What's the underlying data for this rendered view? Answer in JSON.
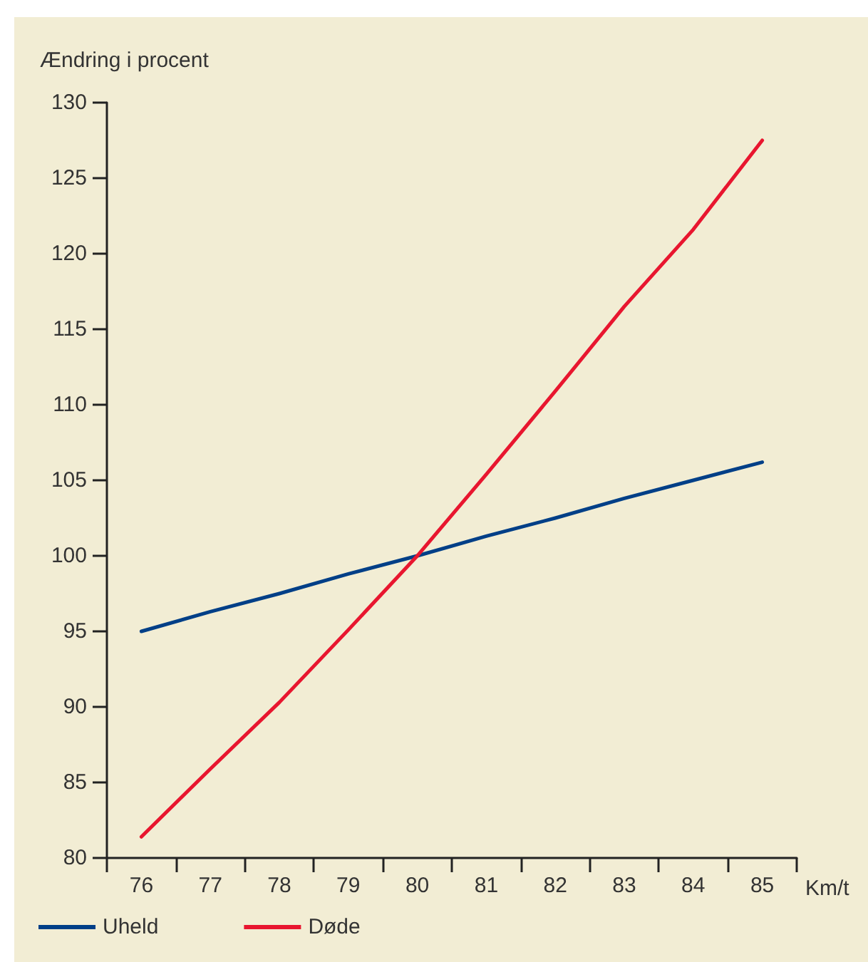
{
  "chart_data": {
    "type": "line",
    "ylabel": "Ændring i procent",
    "xlabel": "Km/t",
    "categories": [
      "76",
      "77",
      "78",
      "79",
      "80",
      "81",
      "82",
      "83",
      "84",
      "85"
    ],
    "series": [
      {
        "name": "Uheld",
        "color": "#003f87",
        "values": [
          95,
          96.3,
          97.5,
          98.8,
          100,
          101.3,
          102.5,
          103.8,
          105,
          106.2
        ]
      },
      {
        "name": "Døde",
        "color": "#e8162f",
        "values": [
          81.4,
          85.9,
          90.3,
          95.1,
          100,
          105.4,
          110.9,
          116.5,
          121.6,
          127.5
        ]
      }
    ],
    "ylim": [
      80,
      130
    ],
    "yticks": [
      80,
      85,
      90,
      95,
      100,
      105,
      110,
      115,
      120,
      125,
      130
    ],
    "grid": false,
    "legend": "bottom left",
    "marker": "none",
    "line_style": "solid"
  }
}
